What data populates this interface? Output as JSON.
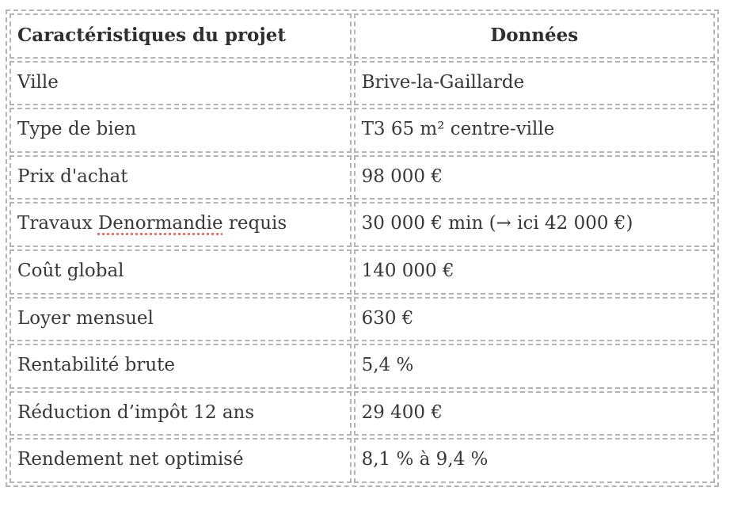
{
  "colors": {
    "border_dashed": "#b4b4b4",
    "text": "#383838",
    "spellcheck_underline": "#e9756d",
    "background": "#ffffff"
  },
  "table": {
    "headers": [
      "Caractéristiques du projet",
      "Données"
    ],
    "rows": [
      {
        "label": "Ville",
        "value": "Brive-la-Gaillarde"
      },
      {
        "label": "Type de bien",
        "value": "T3 65 m² centre-ville"
      },
      {
        "label": "Prix d'achat",
        "value": "98 000 €"
      },
      {
        "label_parts": [
          "Travaux ",
          "Denormandie",
          " requis"
        ],
        "value": "30 000 € min (→ ici 42 000 €)"
      },
      {
        "label": "Coût global",
        "value": "140 000 €"
      },
      {
        "label": "Loyer mensuel",
        "value": "630 €"
      },
      {
        "label": "Rentabilité brute",
        "value": "5,4 %"
      },
      {
        "label": "Réduction d’impôt 12 ans",
        "value": "29 400 €"
      },
      {
        "label": "Rendement net optimisé",
        "value": "8,1 % à 9,4 %"
      }
    ]
  }
}
